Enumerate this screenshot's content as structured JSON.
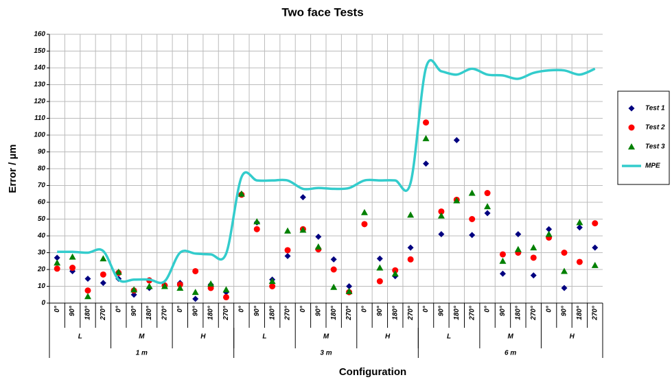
{
  "chart_data": {
    "type": "scatter",
    "title": "Two face Tests",
    "x_label": "Configuration",
    "y_label": "Error / µm",
    "categories": [
      "0°",
      "90°",
      "180°",
      "270°",
      "0°",
      "90°",
      "180°",
      "270°",
      "0°",
      "90°",
      "180°",
      "270°",
      "0°",
      "90°",
      "180°",
      "270°",
      "0°",
      "90°",
      "180°",
      "270°",
      "0°",
      "90°",
      "180°",
      "270°",
      "0°",
      "90°",
      "180°",
      "270°",
      "0°",
      "90°",
      "180°",
      "270°",
      "0°",
      "90°",
      "180°",
      "270°"
    ],
    "category_groups": [
      {
        "labels": [
          "L",
          "M",
          "H",
          "L",
          "M",
          "H",
          "L",
          "M",
          "H"
        ]
      },
      {
        "labels": [
          "1 m",
          "3 m",
          "6 m"
        ]
      }
    ],
    "ylim": [
      0,
      160
    ],
    "yticks": [
      0,
      10,
      20,
      30,
      40,
      50,
      60,
      70,
      80,
      90,
      100,
      110,
      120,
      130,
      140,
      150,
      160
    ],
    "grid": true,
    "legend": "right",
    "series": [
      {
        "name": "Test 1",
        "marker": "diamond",
        "color": "#000080",
        "values": [
          27,
          19,
          14.5,
          12,
          14.5,
          5,
          9,
          10.5,
          12,
          2.5,
          11,
          6.5,
          65,
          48,
          14,
          28,
          63,
          39.5,
          26,
          10,
          47,
          26.5,
          16,
          33,
          83,
          41,
          97,
          40.5,
          53.5,
          17.5,
          41,
          16.5,
          44,
          9,
          45,
          33
        ]
      },
      {
        "name": "Test 2",
        "marker": "circle",
        "color": "#ff0000",
        "values": [
          20.5,
          21,
          7.5,
          17,
          18,
          7.5,
          13.5,
          10.5,
          11,
          19,
          9,
          3.5,
          64.5,
          44,
          10,
          31.5,
          44,
          32,
          20,
          6.5,
          47,
          13,
          19.5,
          26,
          107.5,
          54.5,
          61.5,
          50,
          65.5,
          29,
          30,
          27,
          39,
          30,
          24.5,
          47.5
        ]
      },
      {
        "name": "Test 3",
        "marker": "triangle",
        "color": "#008000",
        "values": [
          24,
          27.5,
          4,
          26.5,
          18.5,
          8,
          10,
          10,
          9,
          6.5,
          11.5,
          8,
          65,
          48.5,
          13,
          43,
          43.5,
          33.5,
          9.5,
          7,
          54,
          21,
          17.5,
          52.5,
          98,
          52,
          61,
          65.5,
          57.5,
          25,
          32,
          33,
          41,
          19,
          48,
          22.5
        ]
      },
      {
        "name": "MPE",
        "marker": "line",
        "color": "#33cccc",
        "values": [
          30.5,
          30.5,
          30,
          31,
          14,
          14,
          14,
          13,
          30,
          29.5,
          29,
          29.5,
          75,
          73,
          73,
          73,
          68,
          68.5,
          68,
          68.5,
          73,
          73,
          73,
          71.5,
          140,
          138,
          136,
          139.5,
          136,
          135.5,
          133.5,
          137,
          138.5,
          138.5,
          136,
          139.5
        ]
      }
    ]
  }
}
